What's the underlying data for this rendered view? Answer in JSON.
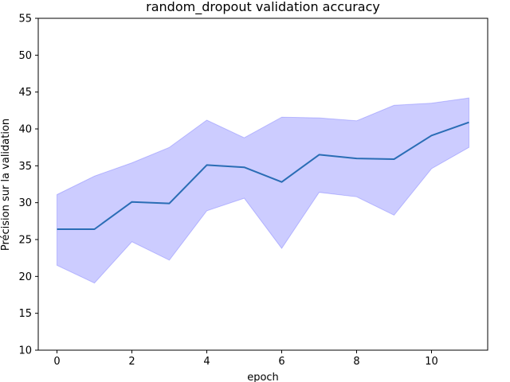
{
  "chart_data": {
    "type": "line",
    "title": "random_dropout validation accuracy",
    "xlabel": "epoch",
    "ylabel": "Précision sur la validation",
    "xlim": [
      -0.5,
      11.5
    ],
    "ylim": [
      10,
      55
    ],
    "x_ticks": [
      0,
      2,
      4,
      6,
      8,
      10
    ],
    "y_ticks": [
      10,
      15,
      20,
      25,
      30,
      35,
      40,
      45,
      50,
      55
    ],
    "grid": false,
    "legend": "none",
    "x": [
      0,
      1,
      2,
      3,
      4,
      5,
      6,
      7,
      8,
      9,
      10,
      11
    ],
    "series": [
      {
        "values": [
          26.4,
          26.4,
          30.1,
          29.9,
          35.1,
          34.8,
          32.8,
          36.5,
          36.0,
          35.9,
          39.1,
          40.9
        ],
        "lower": [
          21.5,
          19.1,
          24.7,
          22.2,
          28.9,
          30.6,
          23.8,
          31.4,
          30.8,
          28.3,
          34.6,
          37.5
        ],
        "upper": [
          31.1,
          33.6,
          35.4,
          37.5,
          41.2,
          38.8,
          41.6,
          41.5,
          41.1,
          43.2,
          43.5,
          44.2
        ],
        "line_color": "#2a6db5",
        "band_color": "#0000ff"
      }
    ]
  }
}
